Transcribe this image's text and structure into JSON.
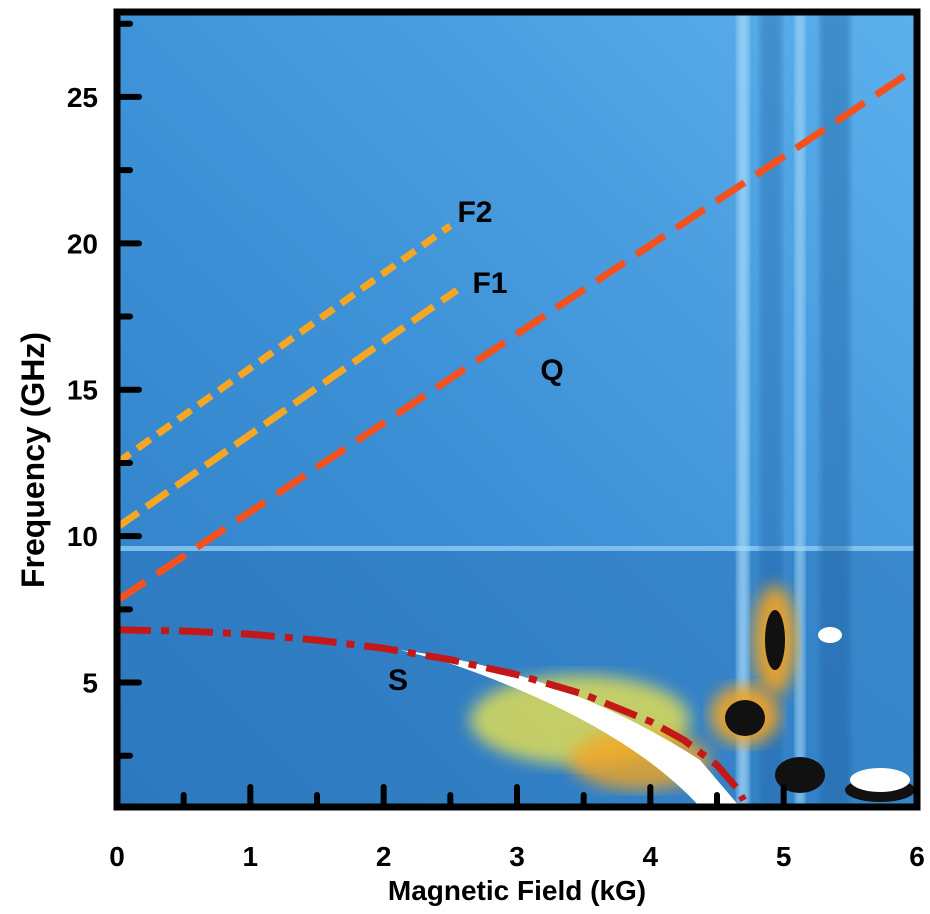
{
  "chart_data": {
    "type": "line",
    "x_label": "Magnetic Field (kG)",
    "y_label": "Frequency (GHz)",
    "xlim": [
      0,
      6
    ],
    "ylim": [
      0.75,
      27.9
    ],
    "xticks": [
      0,
      1,
      2,
      3,
      4,
      5,
      6
    ],
    "yticks": [
      5,
      10,
      15,
      20,
      25
    ],
    "x_minor_ticks": [
      0.5,
      1.5,
      2.5,
      3.5,
      4.5
    ],
    "y_minor_ticks": [
      2.5,
      7.5,
      12.5,
      17.5,
      22.5,
      27.5
    ],
    "series": [
      {
        "name": "F2",
        "color": "#f5a623",
        "dash": "16 9",
        "x": [
          0,
          2.5
        ],
        "values": [
          12.5,
          20.6
        ]
      },
      {
        "name": "F1",
        "color": "#f5a623",
        "dash": "26 10",
        "x": [
          0,
          2.55
        ],
        "values": [
          10.3,
          18.4
        ]
      },
      {
        "name": "Q",
        "color": "#f4511e",
        "dash": "34 14",
        "x": [
          0,
          6
        ],
        "values": [
          7.8,
          26.0
        ]
      },
      {
        "name": "S",
        "color": "#c41818",
        "dash": "34 10 8 10",
        "x": [
          0,
          0.5,
          1.0,
          1.5,
          2.0,
          2.5,
          3.0,
          3.5,
          4.0,
          4.25,
          4.5,
          4.65,
          4.7
        ],
        "values": [
          6.8,
          6.76,
          6.65,
          6.45,
          6.17,
          5.78,
          5.27,
          4.6,
          3.67,
          3.04,
          2.18,
          1.39,
          0.98
        ]
      }
    ]
  }
}
